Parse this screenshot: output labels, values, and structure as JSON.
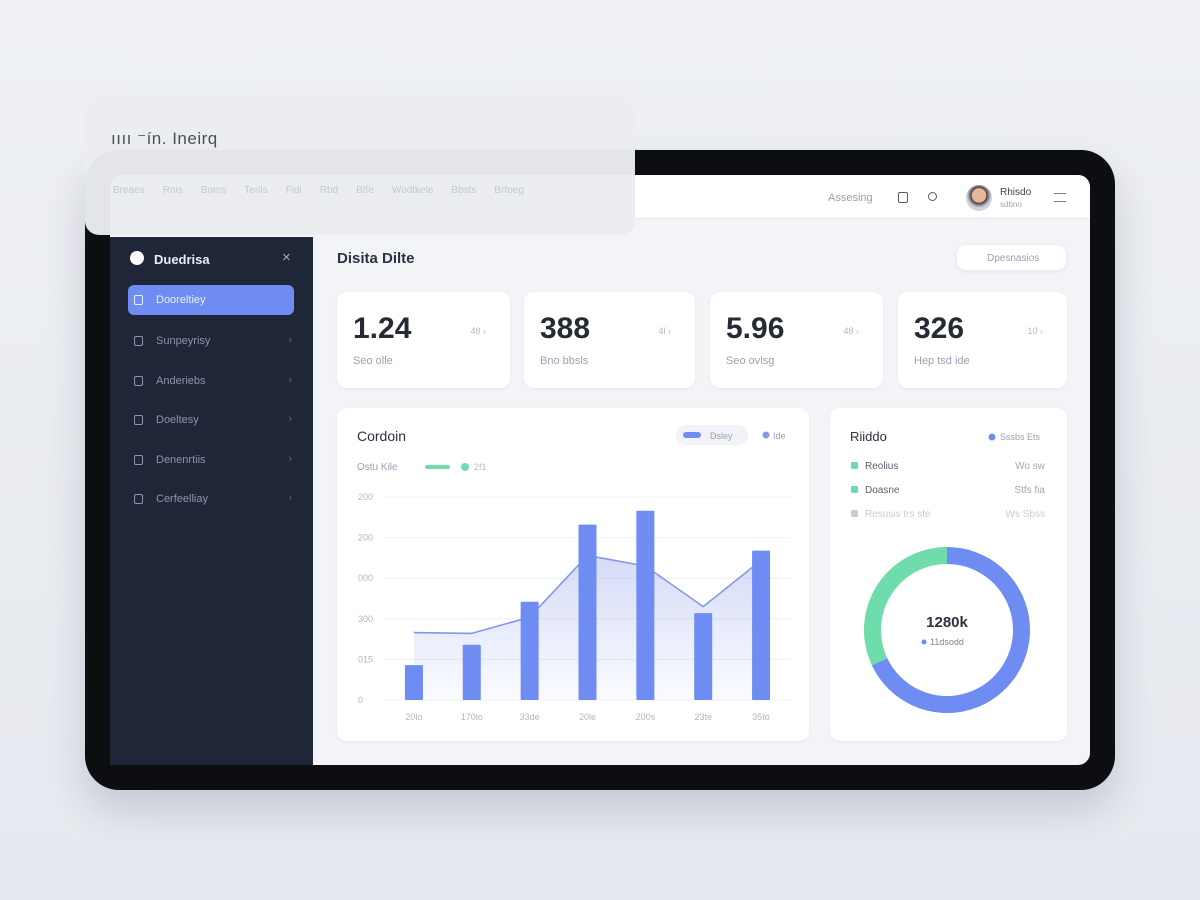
{
  "overlay": {
    "title": "ıııı ⁻ín. Ineirq",
    "nav": [
      "Breaes",
      "Rnis",
      "Boms",
      "Terils",
      "Fidi",
      "Rbd",
      "Btfe",
      "Wodtkele",
      "Bbsts",
      "Brfoeg"
    ]
  },
  "header": {
    "search": "Assesing",
    "user_name": "Rhisdo",
    "user_role": "sdbno"
  },
  "sidebar": {
    "brand": "Duedrisa",
    "items": [
      "Dooreltiey",
      "Sunpeyrisy",
      "Anderiebs",
      "Doeltesy",
      "Denenrtiis",
      "Cerfeelliay"
    ]
  },
  "main": {
    "title": "Disita Dilte",
    "button": "Dpesnasios",
    "stats": [
      {
        "value": "1.24",
        "label": "Seo olle",
        "change": "48 ›"
      },
      {
        "value": "388",
        "label": "Bno bbsls",
        "change": "4l ›"
      },
      {
        "value": "5.96",
        "label": "Seo ovlsg",
        "change": "48 ›"
      },
      {
        "value": "326",
        "label": "Hep tsd ide",
        "change": "10 ›"
      }
    ]
  },
  "chart_data": [
    {
      "type": "bar",
      "title": "Cordoin",
      "subtitle": "Ostu Kile",
      "legend_note": {
        "label": "2f1",
        "color": "#6fdcab"
      },
      "categories": [
        "20lo",
        "170lo",
        "33de",
        "20le",
        "200s",
        "23te",
        "35to"
      ],
      "series": [
        {
          "name": "Dsley",
          "color": "#6f8cf2",
          "values": [
            43,
            68,
            121,
            216,
            233,
            107,
            184
          ]
        },
        {
          "name": "Ide",
          "type": "line",
          "color": "#8597ea",
          "values": [
            83,
            82,
            102,
            178,
            165,
            115,
            172
          ]
        }
      ],
      "ylim": [
        0,
        250
      ],
      "yticks": [
        0,
        {
          "value": 50,
          "label": "015"
        },
        {
          "value": 100,
          "label": "300"
        },
        {
          "value": 150,
          "label": "000"
        },
        200,
        {
          "value": 250,
          "label": "200"
        }
      ],
      "grid": true
    },
    {
      "type": "pie",
      "title": "Riiddo",
      "legend_label": "Sssbs Ets",
      "values": [
        68,
        32
      ],
      "colors": [
        "#6f8cf2",
        "#6fdcab"
      ],
      "center_value": "1280k",
      "center_label": "11dsodd",
      "rows": [
        {
          "label": "Reolius",
          "value": "Wo sw",
          "color": "#6fdcab"
        },
        {
          "label": "Doasne",
          "value": "Stfs fia",
          "color": "#6fdcab"
        },
        {
          "label": "Resusis trs ste",
          "value": "Ws Sbss",
          "color": "#c9ccd6"
        }
      ]
    }
  ]
}
